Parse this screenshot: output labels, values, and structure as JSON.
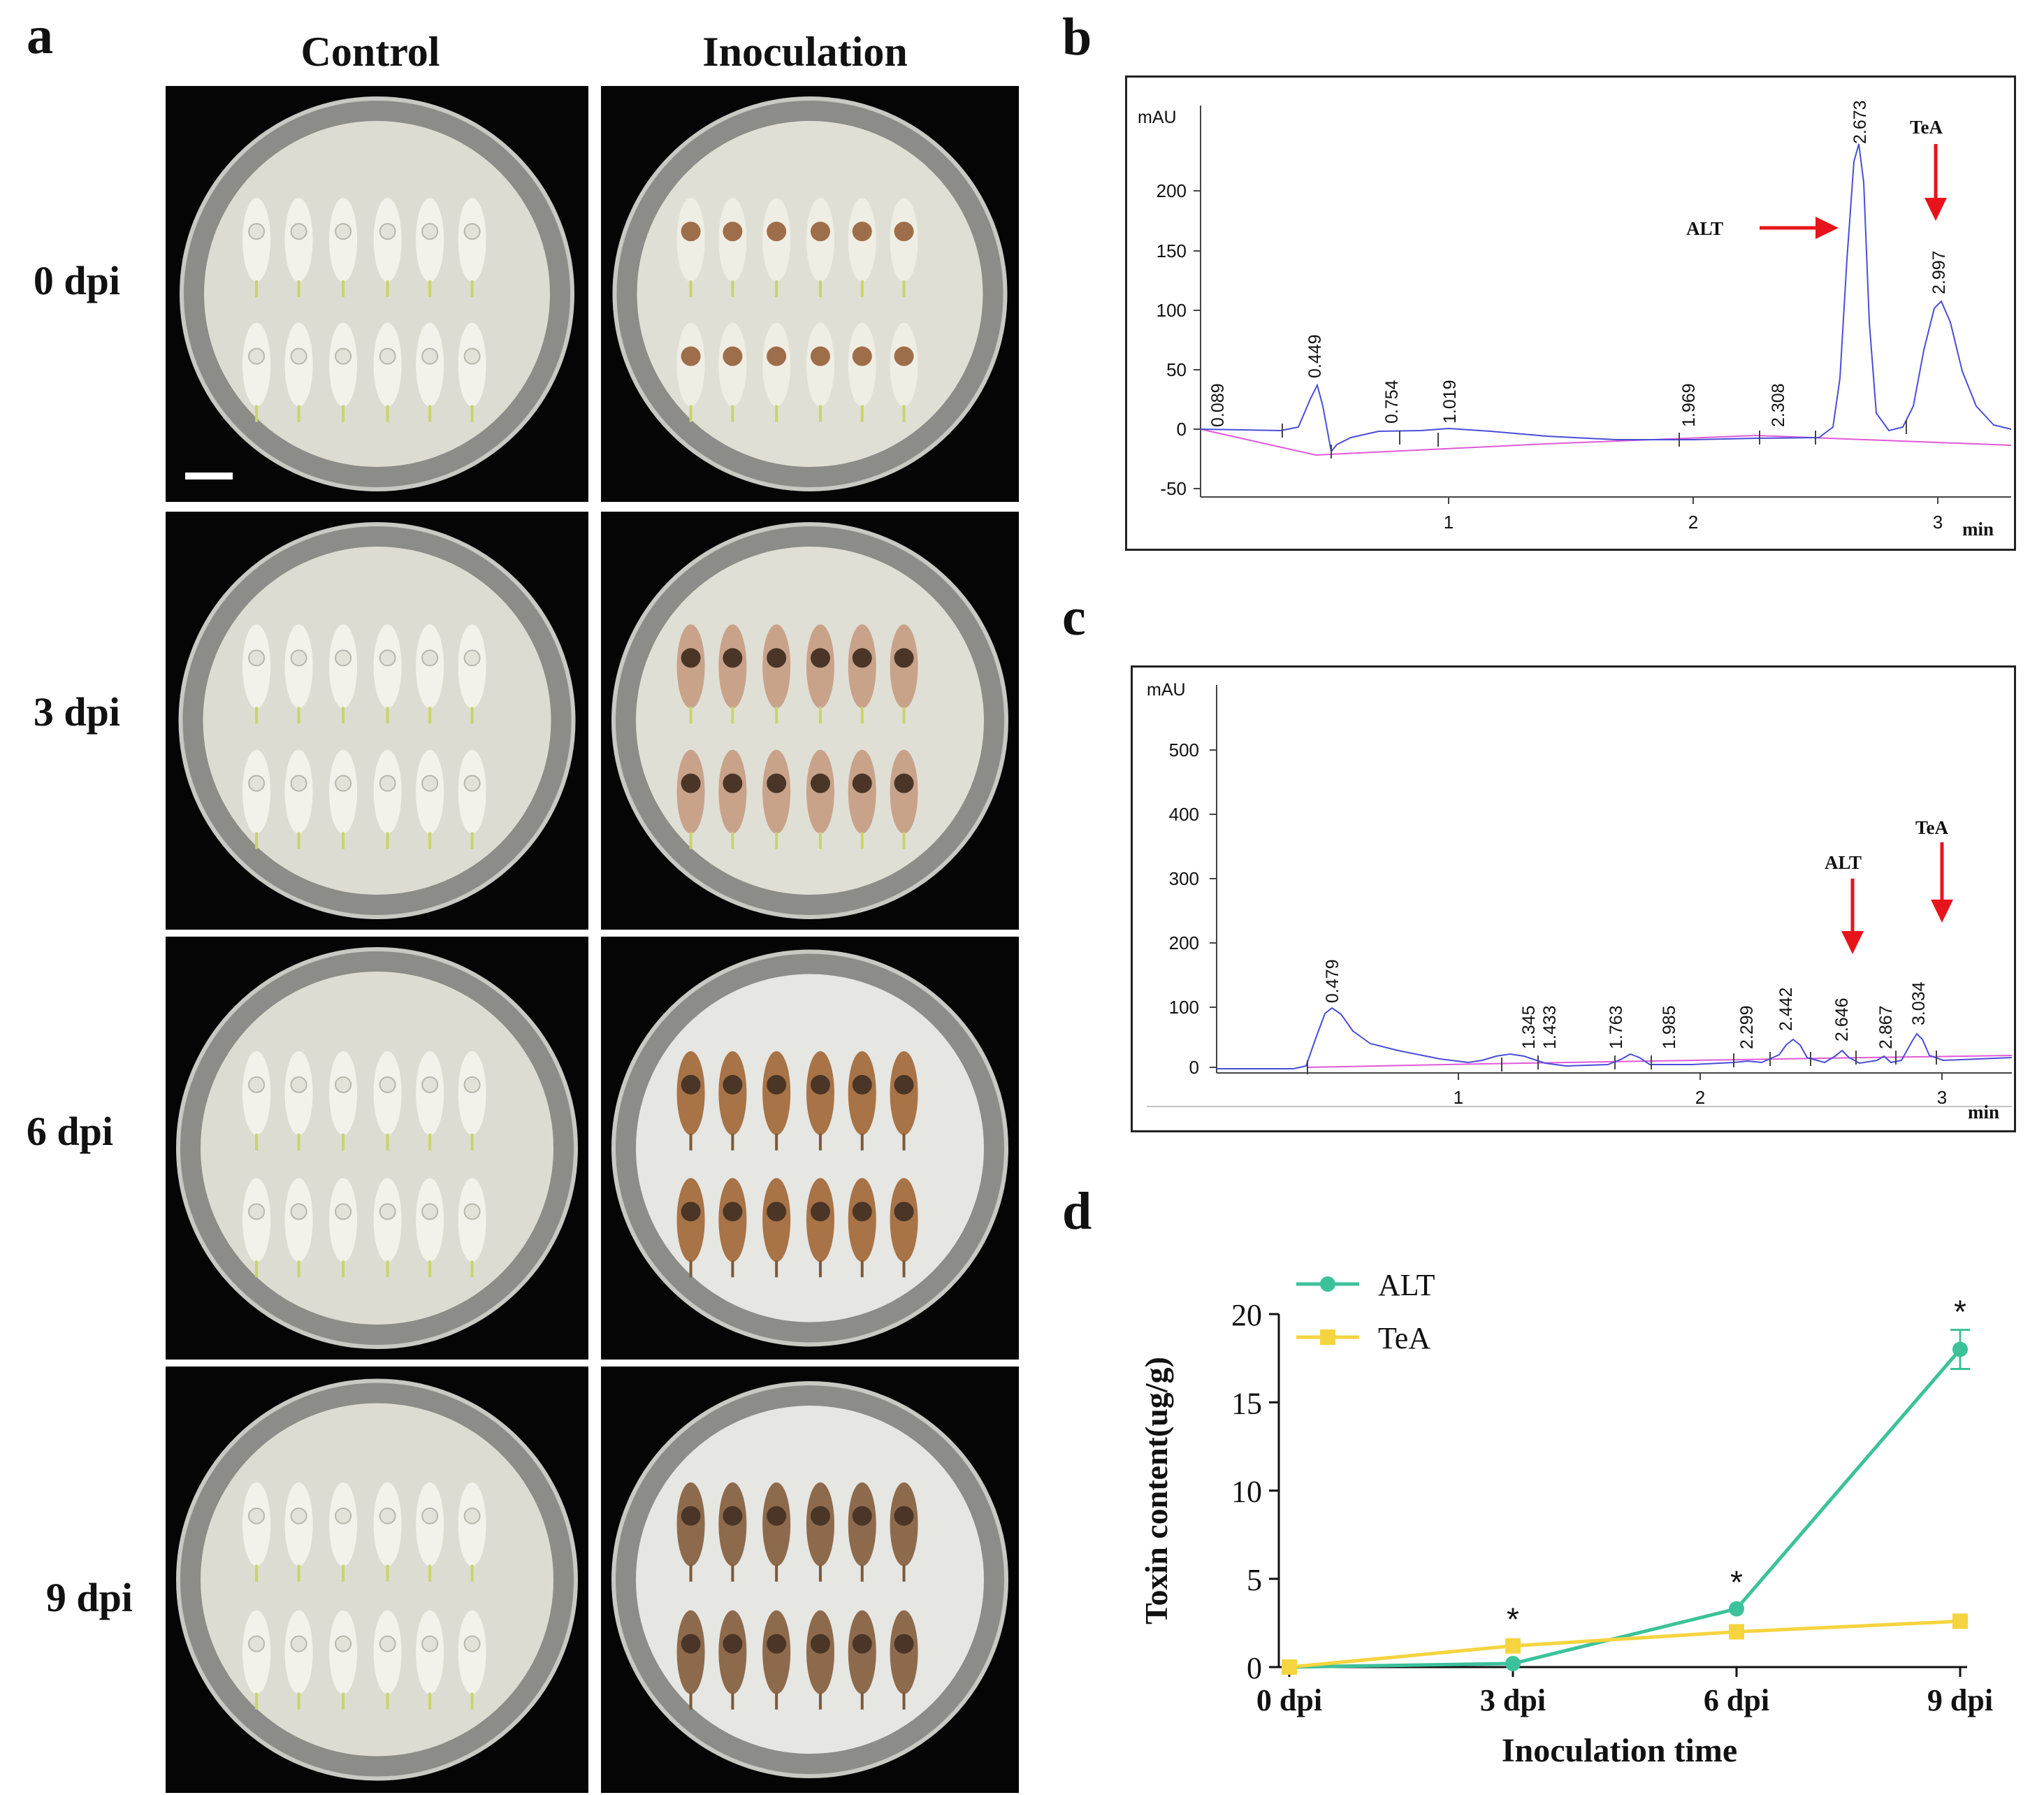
{
  "panel_labels": {
    "a": "a",
    "b": "b",
    "c": "c",
    "d": "d"
  },
  "panel_a": {
    "columns": [
      "Control",
      "Inoculation"
    ],
    "rows": [
      "0 dpi",
      "3 dpi",
      "6 dpi",
      "9 dpi"
    ]
  },
  "panel_b": {
    "y_unit": "mAU",
    "x_unit": "min",
    "y_ticks": [
      "200",
      "150",
      "100",
      "50",
      "0",
      "-50"
    ],
    "x_ticks": [
      "1",
      "2",
      "3"
    ],
    "peak_labels": [
      "0.089",
      "0.449",
      "0.754",
      "1.019",
      "1.969",
      "2.308",
      "2.673",
      "2.997"
    ],
    "annotations": {
      "alt": "ALT",
      "tea": "TeA"
    }
  },
  "panel_c": {
    "y_unit": "mAU",
    "x_unit": "min",
    "y_ticks": [
      "500",
      "400",
      "300",
      "200",
      "100",
      "0"
    ],
    "x_ticks": [
      "1",
      "2",
      "3"
    ],
    "peak_labels": [
      "0.479",
      "1.345",
      "1.433",
      "1.763",
      "1.985",
      "2.299",
      "2.442",
      "2.646",
      "2.867",
      "3.034"
    ],
    "annotations": {
      "alt": "ALT",
      "tea": "TeA"
    }
  },
  "chart_data": {
    "type": "line",
    "categories": [
      "0 dpi",
      "3 dpi",
      "6 dpi",
      "9 dpi"
    ],
    "series": [
      {
        "name": "ALT",
        "values": [
          0,
          0.2,
          3.3,
          18.0
        ],
        "color": "#3cc29a",
        "marker": "circle"
      },
      {
        "name": "TeA",
        "values": [
          0,
          1.2,
          2.0,
          2.6
        ],
        "color": "#f5d43f",
        "marker": "square"
      }
    ],
    "significance": [
      "",
      "*",
      "*",
      "*"
    ],
    "ylabel": "Toxin content(ug/g)",
    "xlabel": "Inoculation time",
    "ylim": [
      0,
      20
    ],
    "y_ticks": [
      "0",
      "5",
      "10",
      "15",
      "20"
    ],
    "legend_position": "top-left"
  }
}
